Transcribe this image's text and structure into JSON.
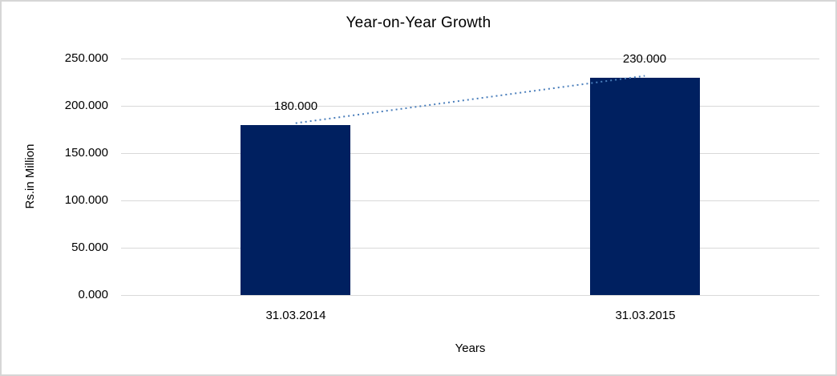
{
  "chart": {
    "title": "Year-on-Year Growth",
    "y_axis_title": "Rs.in Million",
    "x_axis_title": "Years",
    "colors": {
      "bar": "#002060",
      "trendline": "#4a7ebb",
      "gridline": "#d9d9d9",
      "text": "#000000",
      "frame_border": "#d6d6d6",
      "background": "#ffffff"
    }
  },
  "chart_data": {
    "type": "bar",
    "title": "Year-on-Year Growth",
    "xlabel": "Years",
    "ylabel": "Rs.in Million",
    "categories": [
      "31.03.2014",
      "31.03.2015"
    ],
    "values": [
      180,
      230
    ],
    "data_labels": [
      "180.000",
      "230.000"
    ],
    "ylim": [
      0,
      250
    ],
    "yticks": [
      0,
      50,
      100,
      150,
      200,
      250
    ],
    "ytick_labels": [
      "0.000",
      "50.000",
      "100.000",
      "150.000",
      "200.000",
      "250.000"
    ],
    "grid": true,
    "legend": "none",
    "bar_color": "#002060",
    "trendline": {
      "type": "linear",
      "style": "dotted",
      "color": "#4a7ebb",
      "from_value": 180,
      "to_value": 230
    }
  }
}
